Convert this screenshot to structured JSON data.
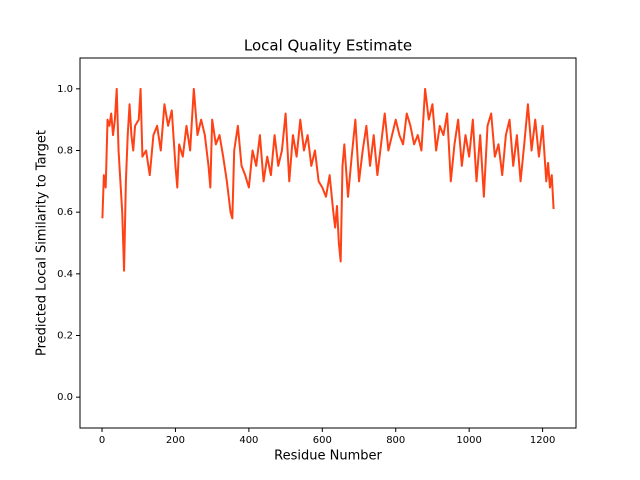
{
  "chart_data": {
    "type": "line",
    "title": "Local Quality Estimate",
    "x_label": "Residue Number",
    "y_label": "Predicted Local Similarity to Target",
    "color": "#ff4216",
    "x": [
      1,
      5,
      10,
      15,
      20,
      25,
      30,
      35,
      40,
      45,
      50,
      55,
      60,
      65,
      70,
      75,
      80,
      85,
      90,
      100,
      105,
      110,
      120,
      130,
      140,
      150,
      160,
      170,
      180,
      190,
      200,
      205,
      210,
      220,
      230,
      240,
      250,
      260,
      270,
      280,
      290,
      295,
      300,
      310,
      320,
      330,
      340,
      350,
      355,
      360,
      370,
      380,
      390,
      400,
      410,
      420,
      430,
      440,
      450,
      460,
      470,
      480,
      490,
      500,
      510,
      520,
      530,
      540,
      550,
      560,
      570,
      580,
      590,
      600,
      610,
      620,
      630,
      635,
      640,
      645,
      650,
      655,
      660,
      670,
      680,
      690,
      700,
      710,
      720,
      730,
      740,
      750,
      760,
      770,
      780,
      790,
      800,
      810,
      820,
      830,
      840,
      850,
      860,
      870,
      880,
      890,
      900,
      910,
      920,
      930,
      940,
      950,
      960,
      970,
      980,
      990,
      1000,
      1010,
      1020,
      1030,
      1040,
      1050,
      1060,
      1070,
      1080,
      1090,
      1100,
      1110,
      1120,
      1130,
      1140,
      1150,
      1160,
      1170,
      1180,
      1190,
      1200,
      1210,
      1215,
      1220,
      1225,
      1230
    ],
    "values": [
      0.58,
      0.72,
      0.68,
      0.9,
      0.88,
      0.92,
      0.85,
      0.9,
      1.0,
      0.8,
      0.7,
      0.6,
      0.41,
      0.7,
      0.85,
      0.95,
      0.85,
      0.8,
      0.88,
      0.9,
      1.0,
      0.78,
      0.8,
      0.72,
      0.85,
      0.88,
      0.8,
      0.95,
      0.88,
      0.93,
      0.75,
      0.68,
      0.82,
      0.78,
      0.88,
      0.8,
      1.0,
      0.85,
      0.9,
      0.85,
      0.75,
      0.68,
      0.9,
      0.82,
      0.85,
      0.78,
      0.7,
      0.6,
      0.58,
      0.8,
      0.88,
      0.75,
      0.72,
      0.68,
      0.8,
      0.75,
      0.85,
      0.7,
      0.78,
      0.72,
      0.85,
      0.75,
      0.8,
      0.92,
      0.7,
      0.85,
      0.78,
      0.9,
      0.8,
      0.85,
      0.75,
      0.8,
      0.7,
      0.68,
      0.65,
      0.72,
      0.6,
      0.55,
      0.62,
      0.5,
      0.44,
      0.75,
      0.82,
      0.65,
      0.78,
      0.9,
      0.7,
      0.8,
      0.88,
      0.75,
      0.85,
      0.72,
      0.82,
      0.92,
      0.8,
      0.85,
      0.9,
      0.85,
      0.82,
      0.92,
      0.88,
      0.82,
      0.85,
      0.8,
      1.0,
      0.9,
      0.95,
      0.8,
      0.88,
      0.85,
      0.92,
      0.7,
      0.82,
      0.9,
      0.75,
      0.85,
      0.78,
      0.9,
      0.7,
      0.85,
      0.65,
      0.88,
      0.92,
      0.78,
      0.82,
      0.72,
      0.85,
      0.9,
      0.75,
      0.85,
      0.7,
      0.82,
      0.95,
      0.8,
      0.9,
      0.78,
      0.88,
      0.7,
      0.76,
      0.68,
      0.72,
      0.61
    ],
    "xlim": [
      -60,
      1291
    ],
    "ylim": [
      -0.1,
      1.1
    ],
    "xticks": [
      0,
      200,
      400,
      600,
      800,
      1000,
      1200
    ],
    "yticks": [
      {
        "value": 0,
        "label": "0.0"
      },
      0.2,
      0.4,
      0.6,
      0.8,
      {
        "value": 1,
        "label": "1.0"
      }
    ]
  }
}
